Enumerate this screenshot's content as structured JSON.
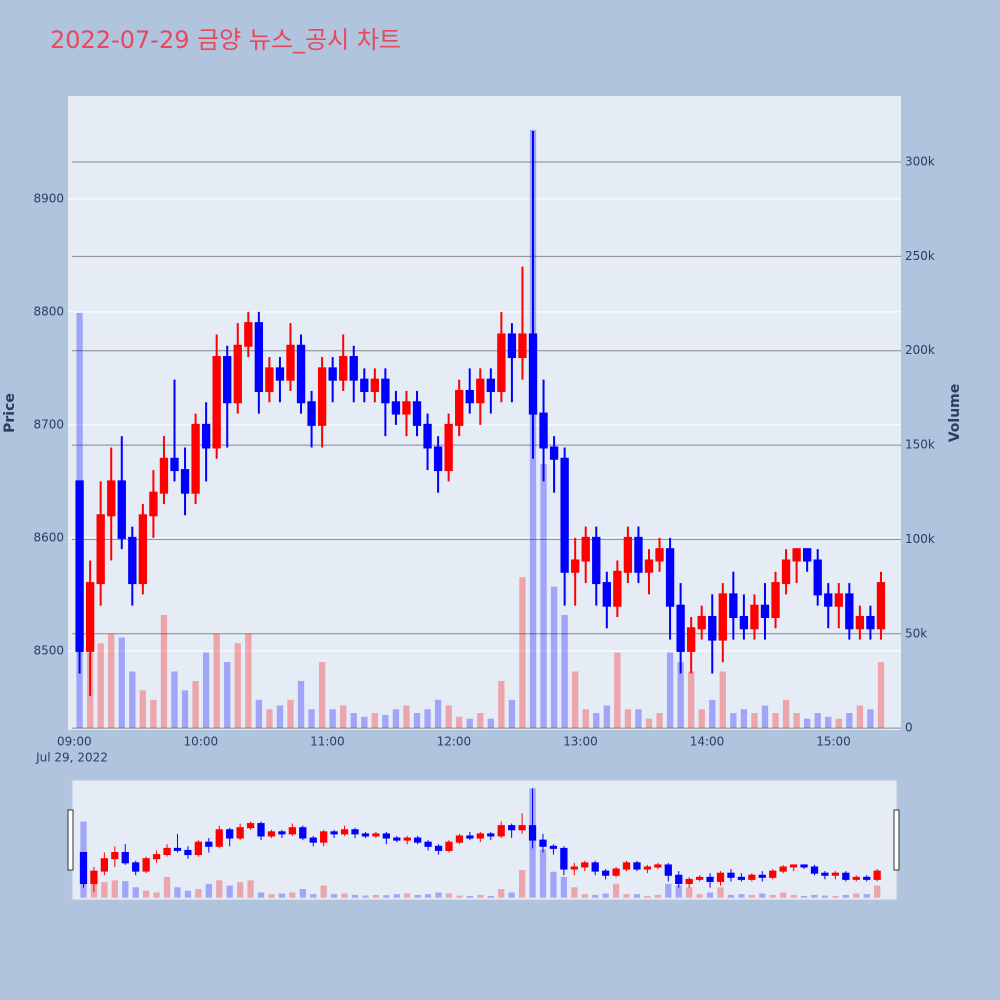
{
  "chart_data": {
    "type": "candlestick",
    "title": "2022-07-29 금양 뉴스_공시 차트",
    "x": [
      "09:00",
      "09:05",
      "09:10",
      "09:15",
      "09:20",
      "09:25",
      "09:30",
      "09:35",
      "09:40",
      "09:45",
      "09:50",
      "09:55",
      "10:00",
      "10:05",
      "10:10",
      "10:15",
      "10:20",
      "10:25",
      "10:30",
      "10:35",
      "10:40",
      "10:45",
      "10:50",
      "10:55",
      "11:00",
      "11:05",
      "11:10",
      "11:15",
      "11:20",
      "11:25",
      "11:30",
      "11:35",
      "11:40",
      "11:45",
      "11:50",
      "11:55",
      "12:00",
      "12:05",
      "12:10",
      "12:15",
      "12:20",
      "12:25",
      "12:30",
      "12:35",
      "12:40",
      "12:45",
      "12:50",
      "12:55",
      "13:00",
      "13:05",
      "13:10",
      "13:15",
      "13:20",
      "13:25",
      "13:30",
      "13:35",
      "13:40",
      "13:45",
      "13:50",
      "13:55",
      "14:00",
      "14:05",
      "14:10",
      "14:15",
      "14:20",
      "14:25",
      "14:30",
      "14:35",
      "14:40",
      "14:45",
      "14:50",
      "14:55",
      "15:00",
      "15:05",
      "15:10",
      "15:15",
      "15:20"
    ],
    "open": [
      8650,
      8500,
      8560,
      8620,
      8650,
      8600,
      8560,
      8620,
      8640,
      8670,
      8660,
      8640,
      8700,
      8680,
      8760,
      8720,
      8770,
      8790,
      8730,
      8750,
      8740,
      8770,
      8720,
      8700,
      8750,
      8740,
      8760,
      8740,
      8730,
      8740,
      8720,
      8710,
      8720,
      8700,
      8680,
      8660,
      8700,
      8730,
      8720,
      8740,
      8730,
      8780,
      8760,
      8780,
      8710,
      8680,
      8670,
      8570,
      8580,
      8600,
      8560,
      8540,
      8570,
      8600,
      8570,
      8580,
      8590,
      8540,
      8500,
      8520,
      8530,
      8510,
      8550,
      8530,
      8520,
      8540,
      8530,
      8560,
      8580,
      8590,
      8580,
      8550,
      8540,
      8550,
      8520,
      8530,
      8520
    ],
    "high": [
      8650,
      8580,
      8650,
      8680,
      8690,
      8610,
      8630,
      8660,
      8690,
      8740,
      8680,
      8710,
      8720,
      8780,
      8770,
      8790,
      8800,
      8800,
      8760,
      8760,
      8790,
      8780,
      8730,
      8760,
      8760,
      8780,
      8770,
      8750,
      8750,
      8750,
      8730,
      8730,
      8730,
      8710,
      8690,
      8710,
      8740,
      8750,
      8750,
      8750,
      8800,
      8790,
      8840,
      8960,
      8740,
      8690,
      8680,
      8600,
      8610,
      8610,
      8570,
      8580,
      8610,
      8610,
      8590,
      8600,
      8600,
      8560,
      8530,
      8540,
      8550,
      8560,
      8570,
      8550,
      8550,
      8560,
      8570,
      8590,
      8590,
      8590,
      8590,
      8560,
      8560,
      8560,
      8540,
      8540,
      8570
    ],
    "low": [
      8480,
      8460,
      8540,
      8580,
      8590,
      8540,
      8550,
      8600,
      8630,
      8650,
      8620,
      8630,
      8650,
      8670,
      8680,
      8710,
      8760,
      8710,
      8720,
      8720,
      8730,
      8710,
      8680,
      8680,
      8720,
      8730,
      8720,
      8720,
      8720,
      8690,
      8700,
      8690,
      8690,
      8660,
      8640,
      8650,
      8690,
      8710,
      8700,
      8710,
      8720,
      8720,
      8740,
      8670,
      8650,
      8640,
      8540,
      8540,
      8560,
      8540,
      8520,
      8530,
      8560,
      8560,
      8550,
      8570,
      8510,
      8480,
      8480,
      8510,
      8480,
      8490,
      8510,
      8510,
      8510,
      8510,
      8520,
      8550,
      8560,
      8570,
      8540,
      8520,
      8520,
      8510,
      8510,
      8510,
      8510
    ],
    "close": [
      8500,
      8560,
      8620,
      8650,
      8600,
      8560,
      8620,
      8640,
      8670,
      8660,
      8640,
      8700,
      8680,
      8760,
      8720,
      8770,
      8790,
      8730,
      8750,
      8740,
      8770,
      8720,
      8700,
      8750,
      8740,
      8760,
      8740,
      8730,
      8740,
      8720,
      8710,
      8720,
      8700,
      8680,
      8660,
      8700,
      8730,
      8720,
      8740,
      8730,
      8780,
      8760,
      8780,
      8710,
      8680,
      8670,
      8570,
      8580,
      8600,
      8560,
      8540,
      8570,
      8600,
      8570,
      8580,
      8590,
      8540,
      8500,
      8520,
      8530,
      8510,
      8550,
      8530,
      8520,
      8540,
      8530,
      8560,
      8580,
      8590,
      8580,
      8550,
      8540,
      8550,
      8520,
      8530,
      8520,
      8560
    ],
    "volume": [
      220000,
      40000,
      45000,
      50000,
      48000,
      30000,
      20000,
      15000,
      60000,
      30000,
      20000,
      25000,
      40000,
      50000,
      35000,
      45000,
      50000,
      15000,
      10000,
      12000,
      15000,
      25000,
      10000,
      35000,
      10000,
      12000,
      8000,
      6000,
      8000,
      7000,
      10000,
      12000,
      8000,
      10000,
      15000,
      12000,
      6000,
      5000,
      8000,
      5000,
      25000,
      15000,
      80000,
      317000,
      140000,
      75000,
      60000,
      30000,
      10000,
      8000,
      12000,
      40000,
      10000,
      10000,
      5000,
      8000,
      40000,
      35000,
      30000,
      10000,
      15000,
      30000,
      8000,
      10000,
      8000,
      12000,
      8000,
      15000,
      8000,
      5000,
      8000,
      6000,
      5000,
      8000,
      12000,
      10000,
      35000
    ],
    "increasing_color": "#ff0000",
    "decreasing_color": "#0000ff",
    "ylabel": "Price",
    "y2label": "Volume",
    "xlim": [
      "08:57",
      "15:32"
    ],
    "xticks": [
      "09:00",
      "10:00",
      "11:00",
      "12:00",
      "13:00",
      "14:00",
      "15:00"
    ],
    "x_date_label": "Jul 29, 2022",
    "ylim": [
      8430,
      8991
    ],
    "yticks": [
      8500,
      8600,
      8700,
      8800,
      8900
    ],
    "y2lim": [
      -1000,
      335000
    ],
    "y2ticks": [
      0,
      {
        "value": 50000,
        "label": "50k"
      },
      {
        "value": 100000,
        "label": "100k"
      },
      {
        "value": 150000,
        "label": "150k"
      },
      {
        "value": 200000,
        "label": "200k"
      },
      {
        "value": 250000,
        "label": "250k"
      },
      {
        "value": 300000,
        "label": "300k"
      }
    ],
    "grid": true,
    "rangeslider": true
  }
}
